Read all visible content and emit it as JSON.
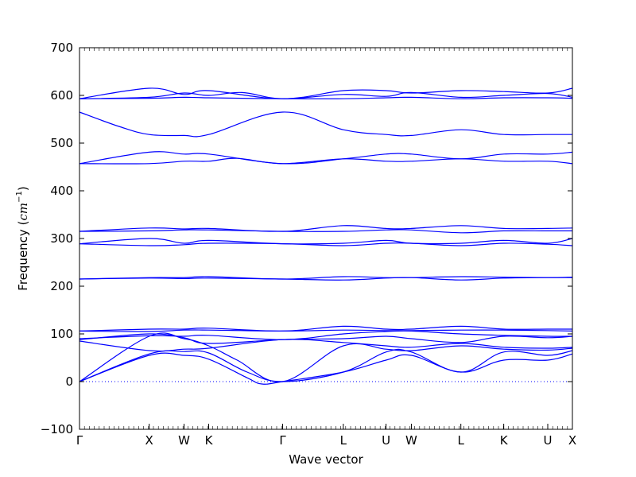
{
  "chart_data": {
    "type": "line",
    "title": "",
    "xlabel": "Wave vector",
    "ylabel": "Frequency",
    "ylabel_unit_base": "cm",
    "ylabel_unit_exp": "−1",
    "ylim": [
      -100,
      700
    ],
    "yticks": [
      -100,
      0,
      100,
      200,
      300,
      400,
      500,
      600,
      700
    ],
    "grid": false,
    "legend": "none",
    "line_color": "#0000ff",
    "zero_line": {
      "y": 0,
      "style": "dotted",
      "color": "#0000ff"
    },
    "x_range": [
      0,
      10
    ],
    "high_symmetry_points": [
      {
        "label": "Γ",
        "x": 0
      },
      {
        "label": "X",
        "x": 1.414
      },
      {
        "label": "W",
        "x": 2.121
      },
      {
        "label": "K",
        "x": 2.621
      },
      {
        "label": "Γ",
        "x": 4.121
      },
      {
        "label": "L",
        "x": 5.352
      },
      {
        "label": "U",
        "x": 6.219
      },
      {
        "label": "W",
        "x": 6.733
      },
      {
        "label": "L",
        "x": 7.737
      },
      {
        "label": "K",
        "x": 8.607
      },
      {
        "label": "U",
        "x": 9.5
      },
      {
        "label": "X",
        "x": 10
      }
    ],
    "series": [
      {
        "x": [
          0,
          1.414,
          2.121,
          2.621,
          3.4,
          3.7,
          4.121,
          5.352,
          6.219,
          6.733,
          7.737,
          8.607,
          9.5,
          10
        ],
        "y": [
          0,
          55,
          55,
          47,
          8,
          -5,
          0,
          20,
          45,
          55,
          20,
          45,
          45,
          58
        ]
      },
      {
        "x": [
          0,
          1.414,
          2.121,
          2.621,
          3.4,
          4.121,
          5.352,
          6.219,
          6.733,
          7.737,
          8.607,
          9.5,
          10
        ],
        "y": [
          0,
          58,
          63,
          60,
          20,
          0,
          20,
          62,
          62,
          20,
          62,
          55,
          65
        ]
      },
      {
        "x": [
          0,
          1.414,
          2.121,
          2.621,
          3.2,
          4.121,
          5.352,
          6.219,
          6.733,
          7.737,
          8.607,
          9.5,
          10
        ],
        "y": [
          0,
          95,
          90,
          75,
          45,
          0,
          75,
          68,
          65,
          75,
          68,
          66,
          70
        ]
      },
      {
        "x": [
          0,
          1.414,
          2.121,
          2.621,
          4.121,
          5.352,
          6.219,
          6.733,
          7.737,
          8.607,
          9.5,
          10
        ],
        "y": [
          85,
          65,
          68,
          70,
          88,
          82,
          75,
          72,
          80,
          72,
          70,
          72
        ]
      },
      {
        "x": [
          0,
          1.414,
          2.121,
          2.621,
          4.121,
          5.352,
          6.219,
          6.733,
          7.737,
          8.607,
          9.5,
          10
        ],
        "y": [
          88,
          100,
          92,
          80,
          88,
          90,
          95,
          90,
          82,
          95,
          92,
          95
        ]
      },
      {
        "x": [
          0,
          1.414,
          2.121,
          2.621,
          4.121,
          5.352,
          6.219,
          6.733,
          7.737,
          8.607,
          9.5,
          10
        ],
        "y": [
          90,
          96,
          95,
          97,
          88,
          100,
          105,
          106,
          100,
          97,
          95,
          95
        ]
      },
      {
        "x": [
          0,
          1.414,
          2.121,
          2.621,
          4.121,
          5.352,
          6.219,
          6.733,
          7.737,
          8.607,
          9.5,
          10
        ],
        "y": [
          106,
          105,
          108,
          108,
          106,
          108,
          107,
          107,
          108,
          108,
          107,
          106
        ]
      },
      {
        "x": [
          0,
          1.414,
          2.121,
          2.621,
          4.121,
          5.352,
          6.219,
          6.733,
          7.737,
          8.607,
          9.5,
          10
        ],
        "y": [
          106,
          110,
          110,
          112,
          106,
          116,
          110,
          110,
          116,
          110,
          110,
          110
        ]
      },
      {
        "x": [
          0,
          1.414,
          2.121,
          2.621,
          4.121,
          5.352,
          6.219,
          6.733,
          7.737,
          8.607,
          9.5,
          10
        ],
        "y": [
          215,
          217,
          216,
          217,
          215,
          213,
          217,
          218,
          213,
          217,
          218,
          218
        ]
      },
      {
        "x": [
          0,
          1.414,
          2.121,
          2.621,
          4.121,
          5.352,
          6.219,
          6.733,
          7.737,
          8.607,
          9.5,
          10
        ],
        "y": [
          215,
          218,
          218,
          220,
          215,
          220,
          218,
          218,
          220,
          219,
          218,
          219
        ]
      },
      {
        "x": [
          0,
          1.414,
          2.121,
          2.621,
          4.121,
          5.352,
          6.219,
          6.733,
          7.737,
          8.607,
          9.5,
          10
        ],
        "y": [
          289,
          285,
          287,
          290,
          289,
          285,
          290,
          290,
          285,
          290,
          288,
          285
        ]
      },
      {
        "x": [
          0,
          1.414,
          2.121,
          2.621,
          4.121,
          5.352,
          6.219,
          6.733,
          7.737,
          8.607,
          9.5,
          10
        ],
        "y": [
          289,
          300,
          290,
          296,
          289,
          290,
          296,
          290,
          290,
          296,
          290,
          300
        ]
      },
      {
        "x": [
          0,
          1.414,
          2.121,
          2.621,
          4.121,
          5.352,
          6.219,
          6.733,
          7.737,
          8.607,
          9.5,
          10
        ],
        "y": [
          315,
          316,
          318,
          318,
          315,
          315,
          318,
          318,
          312,
          316,
          316,
          316
        ]
      },
      {
        "x": [
          0,
          1.414,
          2.121,
          2.621,
          4.121,
          5.352,
          6.219,
          6.733,
          7.737,
          8.607,
          9.5,
          10
        ],
        "y": [
          315,
          322,
          320,
          321,
          315,
          327,
          321,
          321,
          327,
          321,
          321,
          322
        ]
      },
      {
        "x": [
          0,
          1.414,
          2.121,
          2.621,
          3.2,
          4.121,
          5.352,
          6.219,
          6.733,
          7.737,
          8.607,
          9.5,
          10
        ],
        "y": [
          457,
          457,
          462,
          462,
          468,
          457,
          467,
          462,
          462,
          467,
          462,
          462,
          457
        ]
      },
      {
        "x": [
          0,
          1.414,
          2.121,
          2.621,
          4.121,
          5.352,
          6.219,
          6.733,
          7.737,
          8.607,
          9.5,
          10
        ],
        "y": [
          457,
          481,
          477,
          477,
          457,
          467,
          477,
          477,
          467,
          477,
          477,
          481
        ]
      },
      {
        "x": [
          0,
          0.8,
          1.414,
          2.121,
          2.621,
          4.121,
          5.352,
          6.219,
          6.733,
          7.737,
          8.607,
          9.5,
          10
        ],
        "y": [
          565,
          535,
          518,
          516,
          518,
          565,
          528,
          518,
          516,
          528,
          518,
          518,
          518
        ]
      },
      {
        "x": [
          0,
          1.414,
          2.121,
          2.621,
          4.121,
          5.352,
          6.219,
          6.733,
          7.737,
          8.607,
          9.5,
          10
        ],
        "y": [
          593,
          594,
          596,
          595,
          593,
          593,
          595,
          596,
          593,
          595,
          595,
          594
        ]
      },
      {
        "x": [
          0,
          1.414,
          2.121,
          2.621,
          3.3,
          4.121,
          5.352,
          6.219,
          6.733,
          7.737,
          8.607,
          9.5,
          10
        ],
        "y": [
          593,
          596,
          605,
          600,
          606,
          593,
          602,
          598,
          606,
          596,
          600,
          604,
          596
        ]
      },
      {
        "x": [
          0,
          1.414,
          2.121,
          2.621,
          4.121,
          5.352,
          6.219,
          6.733,
          7.737,
          8.607,
          9.5,
          10
        ],
        "y": [
          593,
          615,
          602,
          610,
          593,
          610,
          610,
          605,
          610,
          608,
          605,
          615
        ]
      }
    ]
  }
}
